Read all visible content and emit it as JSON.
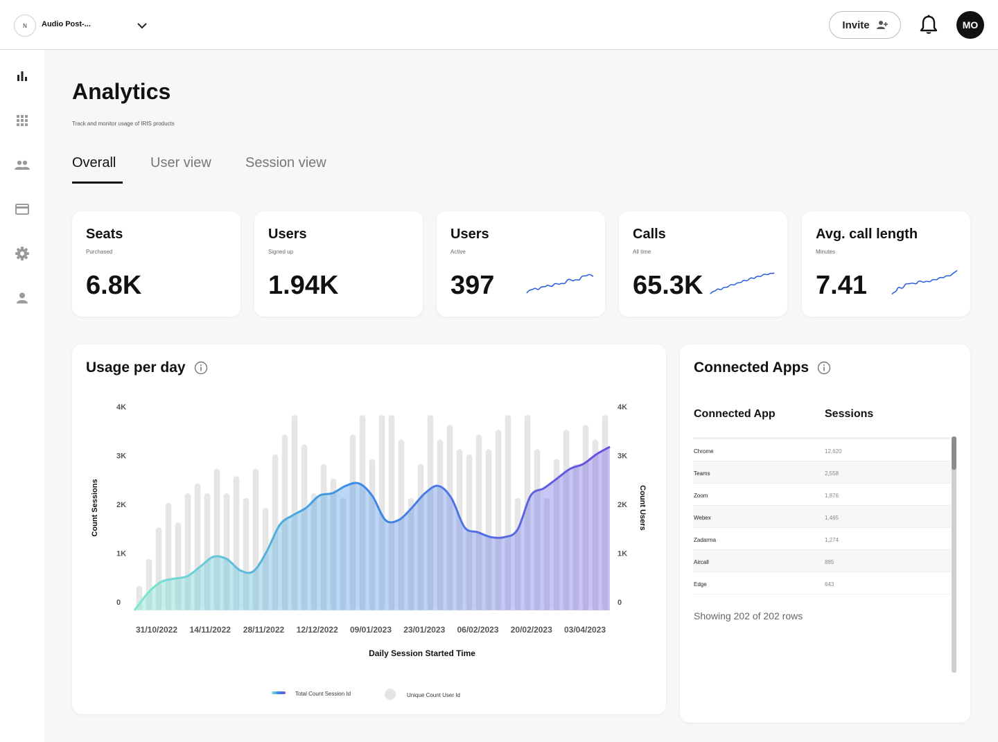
{
  "workspace": {
    "initial": "N",
    "name": "Audio Post-..."
  },
  "header": {
    "invite_label": "Invite",
    "user_initials": "MO"
  },
  "sidebar": {
    "items": [
      {
        "icon": "bar-chart-icon",
        "active": true
      },
      {
        "icon": "apps-grid-icon"
      },
      {
        "icon": "users-icon"
      },
      {
        "icon": "credit-card-icon"
      },
      {
        "icon": "gear-icon"
      },
      {
        "icon": "person-icon"
      }
    ]
  },
  "page": {
    "title": "Analytics",
    "subtitle": "Track and monitor usage of IRIS products",
    "tabs": [
      {
        "label": "Overall",
        "active": true
      },
      {
        "label": "User view"
      },
      {
        "label": "Session view"
      }
    ]
  },
  "stats": [
    {
      "title": "Seats",
      "sub": "Purchased",
      "value": "6.8K",
      "sparkline": false
    },
    {
      "title": "Users",
      "sub": "Signed up",
      "value": "1.94K",
      "sparkline": false
    },
    {
      "title": "Users",
      "sub": "Active",
      "value": "397",
      "sparkline": true
    },
    {
      "title": "Calls",
      "sub": "All time",
      "value": "65.3K",
      "sparkline": true
    },
    {
      "title": "Avg. call length",
      "sub": "Minutes",
      "value": "7.41",
      "sparkline": true
    }
  ],
  "accent_colors": {
    "line_start": "#7fe8cf",
    "line_mid": "#3a8ee6",
    "line_end": "#6a4fe0",
    "bars": "#e6e6e6",
    "sparkline": "#2b5fe0"
  },
  "chart_data": {
    "type": "bar+line",
    "title": "Usage per day",
    "xlabel": "Daily Session Started Time",
    "ylabel": "Count Sessions",
    "ylabel_right": "Count Users",
    "x_tick_labels": [
      "31/10/2022",
      "14/11/2022",
      "28/11/2022",
      "12/12/2022",
      "09/01/2023",
      "23/01/2023",
      "06/02/2023",
      "20/02/2023",
      "03/04/2023"
    ],
    "y_ticks": [
      0,
      1000,
      2000,
      3000,
      4000
    ],
    "y_tick_labels": [
      "0",
      "1K",
      "2K",
      "3K",
      "4K"
    ],
    "y_right_tick_labels": [
      "0",
      "1K",
      "2K",
      "3K",
      "4K"
    ],
    "ylim": [
      0,
      4200
    ],
    "legend": [
      "Total Count Session Id",
      "Unique Count User Id"
    ],
    "bars_unique_users": [
      500,
      1050,
      1700,
      2200,
      1800,
      2400,
      2600,
      2400,
      2900,
      2400,
      2750,
      2300,
      2900,
      2100,
      3200,
      3600,
      4000,
      3400,
      2400,
      3000,
      2700,
      2300,
      3600,
      4000,
      3100,
      4000,
      4000,
      3500,
      2300,
      3000,
      4000,
      3500,
      3800,
      3300,
      3200,
      3600,
      3300,
      3700,
      4000,
      2300,
      4000,
      3300,
      2300,
      3100,
      3700,
      3000,
      3800,
      3500,
      4000
    ],
    "line_total_sessions": [
      0,
      350,
      580,
      650,
      700,
      900,
      1100,
      1050,
      820,
      800,
      1200,
      1750,
      1950,
      2100,
      2350,
      2400,
      2550,
      2600,
      2350,
      1850,
      1850,
      2100,
      2400,
      2550,
      2300,
      1700,
      1600,
      1500,
      1500,
      1650,
      2350,
      2500,
      2700,
      2900,
      3000,
      3200,
      3350
    ]
  },
  "connected_apps": {
    "title": "Connected Apps",
    "columns": [
      "Connected App",
      "Sessions"
    ],
    "rows": [
      {
        "app": "Chrome",
        "sessions": "12,620"
      },
      {
        "app": "Teams",
        "sessions": "2,558"
      },
      {
        "app": "Zoom",
        "sessions": "1,876"
      },
      {
        "app": "Webex",
        "sessions": "1,465"
      },
      {
        "app": "Zadarma",
        "sessions": "1,274"
      },
      {
        "app": "Aircall",
        "sessions": "885"
      },
      {
        "app": "Edge",
        "sessions": "643"
      }
    ],
    "footer": "Showing 202 of 202 rows"
  }
}
